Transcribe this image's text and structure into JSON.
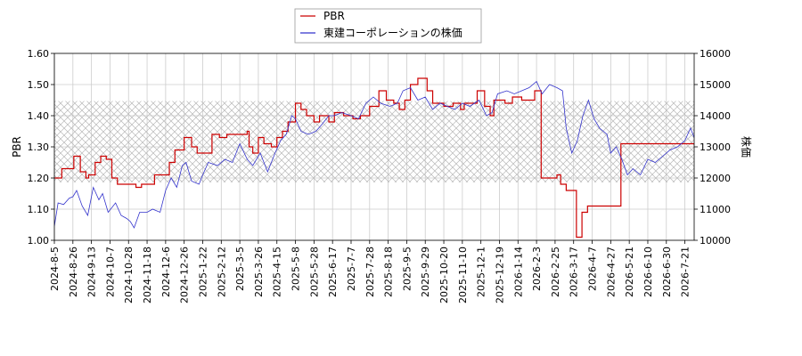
{
  "chart_data": {
    "type": "line",
    "legend": {
      "placement": "top-center",
      "entries": [
        {
          "label": "PBR",
          "color": "#cc0000"
        },
        {
          "label": "東建コーポレーションの株価",
          "color": "#3333cc"
        }
      ]
    },
    "xlabel": "",
    "ylabel": "PBR",
    "y2label": "株価",
    "ylim": [
      1.0,
      1.6
    ],
    "y2lim": [
      10000,
      16000
    ],
    "y_ticks": [
      "1.00",
      "1.10",
      "1.20",
      "1.30",
      "1.40",
      "1.50",
      "1.60"
    ],
    "y2_ticks": [
      "10000",
      "11000",
      "12000",
      "13000",
      "14000",
      "15000",
      "16000"
    ],
    "x_ticks": [
      "2024-8-5",
      "2024-8-26",
      "2024-9-13",
      "2024-10-7",
      "2024-10-28",
      "2024-11-18",
      "2024-12-6",
      "2024-12-26",
      "2025-1-22",
      "2025-2-12",
      "2025-3-5",
      "2025-3-26",
      "2025-4-15",
      "2025-5-8",
      "2025-5-28",
      "2025-6-17",
      "2025-7-7",
      "2025-7-28",
      "2025-8-18",
      "2025-9-5",
      "2025-9-29",
      "2025-10-20",
      "2025-11-10",
      "2025-12-1",
      "2025-12-19",
      "2026-1-14",
      "2026-2-3",
      "2026-2-25",
      "2026-3-17",
      "2026-4-7",
      "2026-4-27",
      "2026-5-21",
      "2026-6-10",
      "2026-6-30",
      "2026-7-21"
    ],
    "x_range_index": [
      0,
      34.5
    ],
    "band": {
      "pbr_low": 1.186,
      "pbr_high": 1.447,
      "pattern": "crosshatch"
    },
    "grid": true,
    "series": [
      {
        "name": "PBR",
        "color": "#cc0000",
        "step": true,
        "points": [
          [
            0,
            1.2
          ],
          [
            0.4,
            1.23
          ],
          [
            1.05,
            1.27
          ],
          [
            1.4,
            1.22
          ],
          [
            1.7,
            1.2
          ],
          [
            1.85,
            1.21
          ],
          [
            2.2,
            1.25
          ],
          [
            2.5,
            1.27
          ],
          [
            2.8,
            1.26
          ],
          [
            3.1,
            1.2
          ],
          [
            3.4,
            1.18
          ],
          [
            3.9,
            1.18
          ],
          [
            4.4,
            1.17
          ],
          [
            4.7,
            1.18
          ],
          [
            5.4,
            1.21
          ],
          [
            6.2,
            1.25
          ],
          [
            6.5,
            1.29
          ],
          [
            7.0,
            1.33
          ],
          [
            7.4,
            1.3
          ],
          [
            7.7,
            1.28
          ],
          [
            8.2,
            1.28
          ],
          [
            8.5,
            1.34
          ],
          [
            8.9,
            1.33
          ],
          [
            9.3,
            1.34
          ],
          [
            10.1,
            1.34
          ],
          [
            10.4,
            1.35
          ],
          [
            10.5,
            1.3
          ],
          [
            10.7,
            1.28
          ],
          [
            11.0,
            1.33
          ],
          [
            11.3,
            1.31
          ],
          [
            11.7,
            1.3
          ],
          [
            12.0,
            1.33
          ],
          [
            12.3,
            1.35
          ],
          [
            12.6,
            1.38
          ],
          [
            13.0,
            1.44
          ],
          [
            13.3,
            1.42
          ],
          [
            13.6,
            1.4
          ],
          [
            14.0,
            1.38
          ],
          [
            14.3,
            1.4
          ],
          [
            14.8,
            1.38
          ],
          [
            15.1,
            1.41
          ],
          [
            15.6,
            1.4
          ],
          [
            16.1,
            1.39
          ],
          [
            16.5,
            1.4
          ],
          [
            17.0,
            1.43
          ],
          [
            17.5,
            1.48
          ],
          [
            17.9,
            1.45
          ],
          [
            18.3,
            1.44
          ],
          [
            18.6,
            1.42
          ],
          [
            18.9,
            1.45
          ],
          [
            19.2,
            1.5
          ],
          [
            19.6,
            1.52
          ],
          [
            20.1,
            1.48
          ],
          [
            20.4,
            1.44
          ],
          [
            21.0,
            1.43
          ],
          [
            21.5,
            1.44
          ],
          [
            21.9,
            1.42
          ],
          [
            22.1,
            1.44
          ],
          [
            22.4,
            1.44
          ],
          [
            22.8,
            1.48
          ],
          [
            23.2,
            1.43
          ],
          [
            23.5,
            1.4
          ],
          [
            23.7,
            1.45
          ],
          [
            24.3,
            1.44
          ],
          [
            24.7,
            1.46
          ],
          [
            25.2,
            1.45
          ],
          [
            25.5,
            1.45
          ],
          [
            25.9,
            1.48
          ],
          [
            26.1,
            1.48
          ],
          [
            26.25,
            1.2
          ],
          [
            26.8,
            1.2
          ],
          [
            27.1,
            1.21
          ],
          [
            27.3,
            1.18
          ],
          [
            27.6,
            1.16
          ],
          [
            28.1,
            1.16
          ],
          [
            28.15,
            1.01
          ],
          [
            28.45,
            1.09
          ],
          [
            28.75,
            1.11
          ],
          [
            30.5,
            1.11
          ],
          [
            30.55,
            1.31
          ],
          [
            34.5,
            1.31
          ]
        ]
      },
      {
        "name": "東建コーポレーションの株価",
        "color": "#3333cc",
        "step": false,
        "points": [
          [
            0,
            10450
          ],
          [
            0.2,
            11200
          ],
          [
            0.5,
            11150
          ],
          [
            0.8,
            11350
          ],
          [
            1.0,
            11400
          ],
          [
            1.2,
            11600
          ],
          [
            1.5,
            11100
          ],
          [
            1.8,
            10800
          ],
          [
            2.1,
            11700
          ],
          [
            2.4,
            11300
          ],
          [
            2.6,
            11500
          ],
          [
            2.9,
            10900
          ],
          [
            3.3,
            11200
          ],
          [
            3.6,
            10800
          ],
          [
            3.9,
            10700
          ],
          [
            4.1,
            10600
          ],
          [
            4.3,
            10400
          ],
          [
            4.6,
            10900
          ],
          [
            5.0,
            10900
          ],
          [
            5.3,
            11000
          ],
          [
            5.7,
            10900
          ],
          [
            6.0,
            11600
          ],
          [
            6.3,
            12000
          ],
          [
            6.6,
            11700
          ],
          [
            6.9,
            12400
          ],
          [
            7.1,
            12500
          ],
          [
            7.4,
            11900
          ],
          [
            7.8,
            11800
          ],
          [
            8.0,
            12100
          ],
          [
            8.3,
            12500
          ],
          [
            8.8,
            12400
          ],
          [
            9.2,
            12600
          ],
          [
            9.6,
            12500
          ],
          [
            10.0,
            13100
          ],
          [
            10.4,
            12600
          ],
          [
            10.7,
            12400
          ],
          [
            11.1,
            12800
          ],
          [
            11.5,
            12200
          ],
          [
            11.9,
            12800
          ],
          [
            12.2,
            13200
          ],
          [
            12.5,
            13400
          ],
          [
            12.8,
            14000
          ],
          [
            13.0,
            13900
          ],
          [
            13.3,
            13500
          ],
          [
            13.7,
            13400
          ],
          [
            14.1,
            13500
          ],
          [
            14.4,
            13700
          ],
          [
            14.8,
            14000
          ],
          [
            15.1,
            14000
          ],
          [
            15.5,
            14100
          ],
          [
            16.0,
            14000
          ],
          [
            16.4,
            13900
          ],
          [
            16.8,
            14400
          ],
          [
            17.2,
            14600
          ],
          [
            17.6,
            14400
          ],
          [
            18.1,
            14300
          ],
          [
            18.5,
            14400
          ],
          [
            18.8,
            14800
          ],
          [
            19.2,
            14900
          ],
          [
            19.6,
            14500
          ],
          [
            20.0,
            14600
          ],
          [
            20.4,
            14200
          ],
          [
            20.8,
            14400
          ],
          [
            21.2,
            14300
          ],
          [
            21.6,
            14200
          ],
          [
            22.0,
            14400
          ],
          [
            22.4,
            14300
          ],
          [
            22.9,
            14500
          ],
          [
            23.3,
            14000
          ],
          [
            23.6,
            14100
          ],
          [
            23.9,
            14700
          ],
          [
            24.4,
            14800
          ],
          [
            24.8,
            14700
          ],
          [
            25.2,
            14800
          ],
          [
            25.6,
            14900
          ],
          [
            26.0,
            15100
          ],
          [
            26.3,
            14700
          ],
          [
            26.7,
            15000
          ],
          [
            27.1,
            14900
          ],
          [
            27.4,
            14800
          ],
          [
            27.6,
            13600
          ],
          [
            27.9,
            12800
          ],
          [
            28.2,
            13200
          ],
          [
            28.5,
            14000
          ],
          [
            28.8,
            14500
          ],
          [
            29.1,
            13900
          ],
          [
            29.4,
            13600
          ],
          [
            29.8,
            13400
          ],
          [
            30.0,
            12800
          ],
          [
            30.3,
            13000
          ],
          [
            30.6,
            12600
          ],
          [
            30.9,
            12100
          ],
          [
            31.2,
            12300
          ],
          [
            31.6,
            12100
          ],
          [
            32.0,
            12600
          ],
          [
            32.4,
            12500
          ],
          [
            32.8,
            12700
          ],
          [
            33.2,
            12900
          ],
          [
            33.6,
            13000
          ],
          [
            34.0,
            13200
          ],
          [
            34.3,
            13600
          ],
          [
            34.5,
            13300
          ]
        ]
      }
    ]
  }
}
